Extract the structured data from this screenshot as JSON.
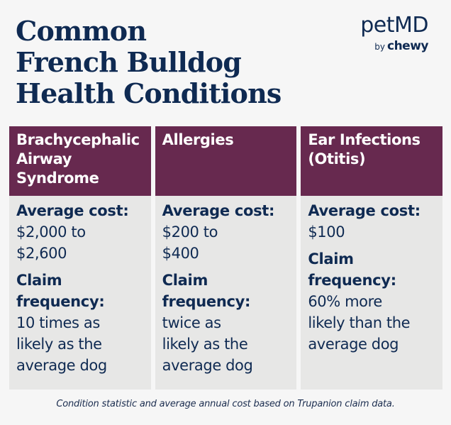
{
  "title": {
    "lines": [
      "Common",
      "French Bulldog",
      "Health Conditions"
    ]
  },
  "logo": {
    "brand": "petMD",
    "by": "by",
    "partner": "chewy"
  },
  "colors": {
    "title_navy": "#0f2a52",
    "header_plum": "#67294f",
    "card_gray": "#e7e7e6",
    "background": "#f6f6f6"
  },
  "conditions": [
    {
      "name_lines": [
        "Brachycephalic",
        "Airway",
        "Syndrome"
      ],
      "cost_label": "Average cost:",
      "cost_lines": [
        "$2,000 to",
        "$2,600"
      ],
      "freq_label_lines": [
        "Claim",
        "frequency:"
      ],
      "freq_lines": [
        "10 times as",
        "likely as the",
        "average dog"
      ]
    },
    {
      "name_lines": [
        "Allergies"
      ],
      "cost_label": "Average cost:",
      "cost_lines": [
        "$200 to",
        "$400"
      ],
      "freq_label_lines": [
        "Claim",
        "frequency:"
      ],
      "freq_lines": [
        "twice as",
        "likely as the",
        "average dog"
      ]
    },
    {
      "name_lines": [
        "Ear Infections",
        "(Otitis)"
      ],
      "cost_label": "Average cost:",
      "cost_lines": [
        "$100"
      ],
      "freq_label_lines": [
        "Claim",
        "frequency:"
      ],
      "freq_lines": [
        "60% more",
        "likely than the",
        "average dog"
      ]
    }
  ],
  "footnote": "Condition statistic and average annual cost based on Trupanion claim data."
}
